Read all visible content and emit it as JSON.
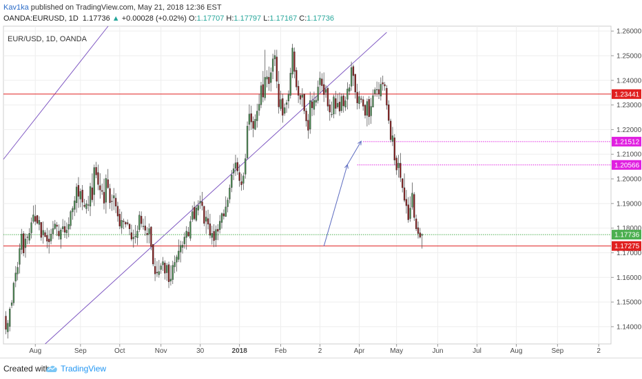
{
  "header": {
    "author": "Kav1ka",
    "published_text": "published on TradingView.com, May 21, 2018 12:36 EST",
    "symbol": "OANDA:EURUSD, 1D",
    "last": "1.17736",
    "change": "+0.00028 (+0.02%)",
    "o_label": "O:",
    "o_value": "1.17707",
    "h_label": "H:",
    "h_value": "1.17797",
    "l_label": "L:",
    "l_value": "1.17167",
    "c_label": "C:",
    "c_value": "1.17736"
  },
  "footer": {
    "created_with": "Created with",
    "brand": "TradingView"
  },
  "chart_data": {
    "type": "candlestick",
    "symbol_label": "EUR/USD, 1D, OANDA",
    "y_range": [
      1.133,
      1.262
    ],
    "y_ticks": [
      "1.26000",
      "1.25000",
      "1.24000",
      "1.23000",
      "1.22000",
      "1.21000",
      "1.20000",
      "1.19000",
      "1.18000",
      "1.17000",
      "1.16000",
      "1.15000",
      "1.14000"
    ],
    "x_ticks": [
      "Aug",
      "Sep",
      "Oct",
      "Nov",
      "30",
      "2018",
      "Feb",
      "2",
      "Apr",
      "May",
      "Jun",
      "Jul",
      "Aug",
      "Sep",
      "2"
    ],
    "grid": true,
    "levels": [
      {
        "label": "1.23441",
        "value": 1.23441,
        "color": "#e02020",
        "style": "solid"
      },
      {
        "label": "1.21512",
        "value": 1.21512,
        "color": "#e020e0",
        "style": "dotted"
      },
      {
        "label": "1.20566",
        "value": 1.20566,
        "color": "#e020e0",
        "style": "dotted"
      },
      {
        "label": "1.17736",
        "value": 1.17736,
        "color": "#4caf50",
        "style": "dotted"
      },
      {
        "label": "1.17275",
        "value": 1.17275,
        "color": "#e02020",
        "style": "solid"
      }
    ],
    "trend_lines": [
      {
        "p1": [
          -28,
          1.1808
        ],
        "p2": [
          53,
          1.2629
        ]
      },
      {
        "p1": [
          -27,
          1.0988
        ],
        "p2": [
          194,
          1.2595
        ]
      }
    ],
    "projection_arrows": [
      {
        "p1": [
          162,
          1.1727
        ],
        "p2": [
          174,
          1.2058
        ]
      },
      {
        "p1": [
          174,
          1.2058
        ],
        "p2": [
          181,
          1.2153
        ]
      }
    ],
    "candles": [
      [
        1.1443,
        1.1463,
        1.1369,
        1.1389
      ],
      [
        1.1379,
        1.1427,
        1.1352,
        1.1414
      ],
      [
        1.1401,
        1.148,
        1.1381,
        1.1472
      ],
      [
        1.1486,
        1.1508,
        1.1475,
        1.1497
      ],
      [
        1.1497,
        1.1583,
        1.1485,
        1.1577
      ],
      [
        1.1585,
        1.1646,
        1.156,
        1.1618
      ],
      [
        1.1614,
        1.1663,
        1.1588,
        1.1641
      ],
      [
        1.1653,
        1.1738,
        1.1616,
        1.1717
      ],
      [
        1.1713,
        1.1797,
        1.1694,
        1.1776
      ],
      [
        1.1778,
        1.1788,
        1.1686,
        1.1699
      ],
      [
        1.1721,
        1.1778,
        1.168,
        1.1756
      ],
      [
        1.1764,
        1.1776,
        1.1734,
        1.1762
      ],
      [
        1.1751,
        1.18,
        1.1736,
        1.1779
      ],
      [
        1.1781,
        1.1843,
        1.1758,
        1.1822
      ],
      [
        1.1827,
        1.1892,
        1.1819,
        1.1854
      ],
      [
        1.1848,
        1.1895,
        1.1812,
        1.1827
      ],
      [
        1.1852,
        1.1852,
        1.1815,
        1.182
      ],
      [
        1.1815,
        1.1848,
        1.1791,
        1.1832
      ],
      [
        1.1824,
        1.1824,
        1.1749,
        1.1762
      ],
      [
        1.1772,
        1.1827,
        1.1737,
        1.1791
      ],
      [
        1.1782,
        1.1792,
        1.1763,
        1.1765
      ],
      [
        1.1771,
        1.1801,
        1.1718,
        1.1747
      ],
      [
        1.1756,
        1.1792,
        1.1697,
        1.1744
      ],
      [
        1.1748,
        1.1797,
        1.1734,
        1.1776
      ],
      [
        1.1777,
        1.1829,
        1.1756,
        1.1798
      ],
      [
        1.1798,
        1.1833,
        1.1793,
        1.1817
      ],
      [
        1.1813,
        1.1825,
        1.1768,
        1.1807
      ],
      [
        1.1788,
        1.1815,
        1.1753,
        1.1768
      ],
      [
        1.1755,
        1.1802,
        1.1717,
        1.1793
      ],
      [
        1.1797,
        1.1837,
        1.1784,
        1.1806
      ],
      [
        1.1807,
        1.1831,
        1.176,
        1.1783
      ],
      [
        1.1781,
        1.1823,
        1.1757,
        1.1792
      ],
      [
        1.1796,
        1.1844,
        1.1763,
        1.1815
      ],
      [
        1.181,
        1.1873,
        1.1795,
        1.1867
      ],
      [
        1.1866,
        1.1889,
        1.1834,
        1.188
      ],
      [
        1.1876,
        1.193,
        1.1849,
        1.1911
      ],
      [
        1.1903,
        1.1982,
        1.1863,
        1.1967
      ],
      [
        1.1974,
        1.2007,
        1.1882,
        1.1929
      ],
      [
        1.1918,
        1.1961,
        1.1885,
        1.1949
      ],
      [
        1.1955,
        1.1975,
        1.1873,
        1.1905
      ],
      [
        1.1893,
        1.1919,
        1.1882,
        1.1888
      ],
      [
        1.1879,
        1.1914,
        1.1859,
        1.1899
      ],
      [
        1.1895,
        1.1931,
        1.1869,
        1.1894
      ],
      [
        1.1889,
        1.1984,
        1.1849,
        1.1969
      ],
      [
        1.1964,
        1.2022,
        1.1904,
        1.1915
      ],
      [
        1.1936,
        1.2058,
        1.189,
        1.2046
      ],
      [
        1.2047,
        1.2069,
        1.2003,
        1.2016
      ],
      [
        1.2026,
        1.2058,
        1.1954,
        1.1977
      ],
      [
        1.1973,
        1.2023,
        1.192,
        1.1955
      ],
      [
        1.1953,
        1.1981,
        1.1935,
        1.1949
      ],
      [
        1.1946,
        1.2001,
        1.1876,
        1.1901
      ],
      [
        1.1905,
        1.2018,
        1.1859,
        1.2002
      ],
      [
        1.1997,
        1.204,
        1.1959,
        1.1964
      ],
      [
        1.1961,
        1.198,
        1.1878,
        1.1903
      ],
      [
        1.191,
        1.1937,
        1.187,
        1.1909
      ],
      [
        1.1922,
        1.1963,
        1.1873,
        1.1932
      ],
      [
        1.1922,
        1.1942,
        1.1861,
        1.1889
      ],
      [
        1.1889,
        1.1907,
        1.1826,
        1.1849
      ],
      [
        1.1857,
        1.1878,
        1.1796,
        1.1808
      ],
      [
        1.1801,
        1.1867,
        1.1777,
        1.1832
      ],
      [
        1.1829,
        1.1839,
        1.1796,
        1.1826
      ],
      [
        1.1824,
        1.1828,
        1.1803,
        1.1816
      ],
      [
        1.1822,
        1.1835,
        1.1811,
        1.1818
      ],
      [
        1.1817,
        1.1817,
        1.1771,
        1.1797
      ],
      [
        1.1782,
        1.1814,
        1.1747,
        1.1755
      ],
      [
        1.1757,
        1.1794,
        1.1721,
        1.1763
      ],
      [
        1.1765,
        1.1813,
        1.1738,
        1.1768
      ],
      [
        1.1761,
        1.1811,
        1.1731,
        1.1788
      ],
      [
        1.1794,
        1.1869,
        1.1784,
        1.1853
      ],
      [
        1.1849,
        1.1868,
        1.1803,
        1.1818
      ],
      [
        1.1807,
        1.1839,
        1.1794,
        1.1808
      ],
      [
        1.1809,
        1.1849,
        1.1769,
        1.1791
      ],
      [
        1.1779,
        1.1804,
        1.1739,
        1.1773
      ],
      [
        1.1776,
        1.1819,
        1.1738,
        1.1798
      ],
      [
        1.1805,
        1.1807,
        1.171,
        1.1725
      ],
      [
        1.1734,
        1.1735,
        1.1645,
        1.1654
      ],
      [
        1.1645,
        1.1679,
        1.1585,
        1.1614
      ],
      [
        1.1621,
        1.1666,
        1.1602,
        1.1618
      ],
      [
        1.1611,
        1.1671,
        1.1599,
        1.1624
      ],
      [
        1.1632,
        1.1658,
        1.1615,
        1.1647
      ],
      [
        1.1651,
        1.1683,
        1.1626,
        1.1664
      ],
      [
        1.1659,
        1.1669,
        1.1591,
        1.1617
      ],
      [
        1.1619,
        1.1659,
        1.1586,
        1.1649
      ],
      [
        1.1652,
        1.1664,
        1.1557,
        1.1582
      ],
      [
        1.1585,
        1.1649,
        1.1567,
        1.1593
      ],
      [
        1.1591,
        1.1668,
        1.1573,
        1.1649
      ],
      [
        1.1643,
        1.1689,
        1.1617,
        1.1661
      ],
      [
        1.1662,
        1.1692,
        1.1624,
        1.1683
      ],
      [
        1.1673,
        1.1754,
        1.1662,
        1.1707
      ],
      [
        1.1703,
        1.1749,
        1.1661,
        1.173
      ],
      [
        1.1722,
        1.1747,
        1.1697,
        1.1731
      ],
      [
        1.1736,
        1.1783,
        1.1717,
        1.1764
      ],
      [
        1.1762,
        1.1808,
        1.1713,
        1.1788
      ],
      [
        1.1784,
        1.1805,
        1.1765,
        1.1768
      ],
      [
        1.1759,
        1.1849,
        1.1748,
        1.1827
      ],
      [
        1.1835,
        1.1892,
        1.1825,
        1.1867
      ],
      [
        1.1885,
        1.1908,
        1.1832,
        1.1838
      ],
      [
        1.1832,
        1.1895,
        1.1826,
        1.1882
      ],
      [
        1.1873,
        1.1913,
        1.1852,
        1.1892
      ],
      [
        1.1902,
        1.1932,
        1.1878,
        1.1909
      ],
      [
        1.1907,
        1.1947,
        1.1872,
        1.1891
      ],
      [
        1.1889,
        1.189,
        1.1808,
        1.1819
      ],
      [
        1.1828,
        1.1871,
        1.1777,
        1.1845
      ],
      [
        1.1839,
        1.1875,
        1.1795,
        1.1816
      ],
      [
        1.1818,
        1.1858,
        1.1758,
        1.1771
      ],
      [
        1.1762,
        1.181,
        1.1733,
        1.1779
      ],
      [
        1.1787,
        1.1816,
        1.1723,
        1.1749
      ],
      [
        1.1753,
        1.1811,
        1.1724,
        1.1794
      ],
      [
        1.1796,
        1.1816,
        1.1751,
        1.1787
      ],
      [
        1.1794,
        1.1853,
        1.1778,
        1.1828
      ],
      [
        1.1823,
        1.1864,
        1.1798,
        1.1859
      ],
      [
        1.1859,
        1.1876,
        1.1835,
        1.1849
      ],
      [
        1.1847,
        1.1929,
        1.1846,
        1.1886
      ],
      [
        1.1887,
        1.1924,
        1.1864,
        1.1914
      ],
      [
        1.1918,
        1.1977,
        1.1901,
        1.1963
      ],
      [
        1.1965,
        1.2036,
        1.1946,
        1.2016
      ],
      [
        1.2023,
        1.2062,
        1.1995,
        1.2041
      ],
      [
        1.2043,
        1.2098,
        1.2012,
        1.2065
      ],
      [
        1.2067,
        1.2086,
        1.2016,
        1.2032
      ],
      [
        1.2026,
        1.2059,
        1.1968,
        1.1993
      ],
      [
        1.1989,
        1.2021,
        1.1952,
        1.1976
      ],
      [
        1.1982,
        1.2026,
        1.1955,
        1.2012
      ],
      [
        1.2019,
        1.2102,
        1.2001,
        1.2082
      ],
      [
        1.2085,
        1.2233,
        1.2078,
        1.2214
      ],
      [
        1.2221,
        1.2302,
        1.2196,
        1.2263
      ],
      [
        1.2265,
        1.2297,
        1.2199,
        1.2231
      ],
      [
        1.2234,
        1.2253,
        1.2169,
        1.2205
      ],
      [
        1.2201,
        1.2262,
        1.2198,
        1.2242
      ],
      [
        1.2236,
        1.2305,
        1.2208,
        1.2275
      ],
      [
        1.2278,
        1.2345,
        1.2256,
        1.2303
      ],
      [
        1.2301,
        1.2394,
        1.2287,
        1.2378
      ],
      [
        1.2383,
        1.2438,
        1.2311,
        1.2332
      ],
      [
        1.2329,
        1.2524,
        1.2318,
        1.2412
      ],
      [
        1.2405,
        1.2441,
        1.2371,
        1.2414
      ],
      [
        1.2413,
        1.2456,
        1.2358,
        1.2386
      ],
      [
        1.2391,
        1.2452,
        1.2355,
        1.2431
      ],
      [
        1.2436,
        1.2508,
        1.2405,
        1.2487
      ],
      [
        1.2487,
        1.2524,
        1.2458,
        1.2501
      ],
      [
        1.2495,
        1.2524,
        1.2368,
        1.2396
      ],
      [
        1.2385,
        1.2438,
        1.2265,
        1.2292
      ],
      [
        1.2285,
        1.2358,
        1.2276,
        1.2322
      ],
      [
        1.2326,
        1.2346,
        1.2228,
        1.2258
      ],
      [
        1.2266,
        1.2306,
        1.2256,
        1.2289
      ],
      [
        1.2302,
        1.2321,
        1.2268,
        1.2309
      ],
      [
        1.2316,
        1.2359,
        1.2286,
        1.2344
      ],
      [
        1.2339,
        1.2451,
        1.2326,
        1.2429
      ],
      [
        1.2425,
        1.2548,
        1.2409,
        1.2531
      ],
      [
        1.2516,
        1.2533,
        1.2408,
        1.2436
      ],
      [
        1.2441,
        1.2453,
        1.2359,
        1.2373
      ],
      [
        1.2376,
        1.2399,
        1.2308,
        1.2339
      ],
      [
        1.2339,
        1.2348,
        1.2302,
        1.2323
      ],
      [
        1.2331,
        1.2368,
        1.2293,
        1.2341
      ],
      [
        1.2345,
        1.2345,
        1.2263,
        1.2276
      ],
      [
        1.2276,
        1.2287,
        1.2212,
        1.2235
      ],
      [
        1.2238,
        1.2264,
        1.2163,
        1.2197
      ],
      [
        1.2202,
        1.2354,
        1.2183,
        1.2318
      ],
      [
        1.2313,
        1.2339,
        1.2255,
        1.2288
      ],
      [
        1.2282,
        1.2354,
        1.2258,
        1.2319
      ],
      [
        1.2311,
        1.2337,
        1.2295,
        1.2319
      ],
      [
        1.2318,
        1.2399,
        1.2306,
        1.2373
      ],
      [
        1.2382,
        1.2435,
        1.2349,
        1.2409
      ],
      [
        1.2406,
        1.2429,
        1.2354,
        1.2378
      ],
      [
        1.2383,
        1.2432,
        1.2312,
        1.2342
      ],
      [
        1.2351,
        1.2381,
        1.2329,
        1.2363
      ],
      [
        1.2368,
        1.2374,
        1.2276,
        1.2295
      ],
      [
        1.2301,
        1.2323,
        1.2236,
        1.2271
      ],
      [
        1.2262,
        1.2314,
        1.2249,
        1.2262
      ],
      [
        1.2263,
        1.2342,
        1.2246,
        1.2333
      ],
      [
        1.2326,
        1.2357,
        1.2262,
        1.2286
      ],
      [
        1.2292,
        1.2346,
        1.2284,
        1.2307
      ],
      [
        1.2312,
        1.2351,
        1.2256,
        1.2275
      ],
      [
        1.2277,
        1.2347,
        1.2268,
        1.2334
      ],
      [
        1.2337,
        1.2347,
        1.2269,
        1.2296
      ],
      [
        1.2291,
        1.2335,
        1.2276,
        1.2317
      ],
      [
        1.2323,
        1.2392,
        1.2282,
        1.2365
      ],
      [
        1.2356,
        1.2385,
        1.234,
        1.237
      ],
      [
        1.2376,
        1.2476,
        1.2358,
        1.2452
      ],
      [
        1.2456,
        1.2464,
        1.2377,
        1.2419
      ],
      [
        1.2425,
        1.2425,
        1.2326,
        1.2352
      ],
      [
        1.2352,
        1.2386,
        1.2282,
        1.2308
      ],
      [
        1.2305,
        1.2356,
        1.2284,
        1.2334
      ],
      [
        1.2325,
        1.2337,
        1.2309,
        1.2322
      ],
      [
        1.2322,
        1.2336,
        1.2277,
        1.2295
      ],
      [
        1.2299,
        1.2303,
        1.2245,
        1.2258
      ],
      [
        1.2258,
        1.2326,
        1.2213,
        1.2314
      ],
      [
        1.2323,
        1.2336,
        1.2219,
        1.2252
      ],
      [
        1.2256,
        1.2329,
        1.2223,
        1.2294
      ],
      [
        1.2291,
        1.2363,
        1.2291,
        1.2338
      ],
      [
        1.2346,
        1.2371,
        1.2334,
        1.2362
      ],
      [
        1.2362,
        1.2395,
        1.2333,
        1.2363
      ],
      [
        1.2363,
        1.2393,
        1.2324,
        1.2344
      ],
      [
        1.2336,
        1.2412,
        1.2318,
        1.2384
      ],
      [
        1.2391,
        1.2419,
        1.2358,
        1.2385
      ],
      [
        1.2383,
        1.2393,
        1.2358,
        1.2377
      ],
      [
        1.2368,
        1.2381,
        1.2281,
        1.2299
      ],
      [
        1.2301,
        1.2319,
        1.2223,
        1.2237
      ],
      [
        1.2235,
        1.2244,
        1.2148,
        1.2159
      ],
      [
        1.2152,
        1.2211,
        1.2133,
        1.2175
      ],
      [
        1.2167,
        1.2182,
        1.2055,
        1.2076
      ],
      [
        1.2085,
        1.2095,
        1.2016,
        1.2036
      ],
      [
        1.2045,
        1.2097,
        1.2005,
        1.2064
      ],
      [
        1.2064,
        1.2105,
        1.1987,
        1.2005
      ],
      [
        1.2001,
        1.2003,
        1.1945,
        1.1964
      ],
      [
        1.1964,
        1.2022,
        1.1905,
        1.1913
      ],
      [
        1.1917,
        1.1955,
        1.1859,
        1.1891
      ],
      [
        1.1895,
        1.1926,
        1.1822,
        1.1834
      ],
      [
        1.1839,
        1.1929,
        1.1826,
        1.1881
      ],
      [
        1.1885,
        1.1985,
        1.1875,
        1.1942
      ],
      [
        1.1937,
        1.1946,
        1.1829,
        1.1843
      ],
      [
        1.1838,
        1.1855,
        1.1788,
        1.1797
      ],
      [
        1.1802,
        1.1827,
        1.1758,
        1.1778
      ],
      [
        1.1781,
        1.1801,
        1.1758,
        1.1763
      ],
      [
        1.1771,
        1.1779,
        1.1717,
        1.1774
      ]
    ]
  }
}
